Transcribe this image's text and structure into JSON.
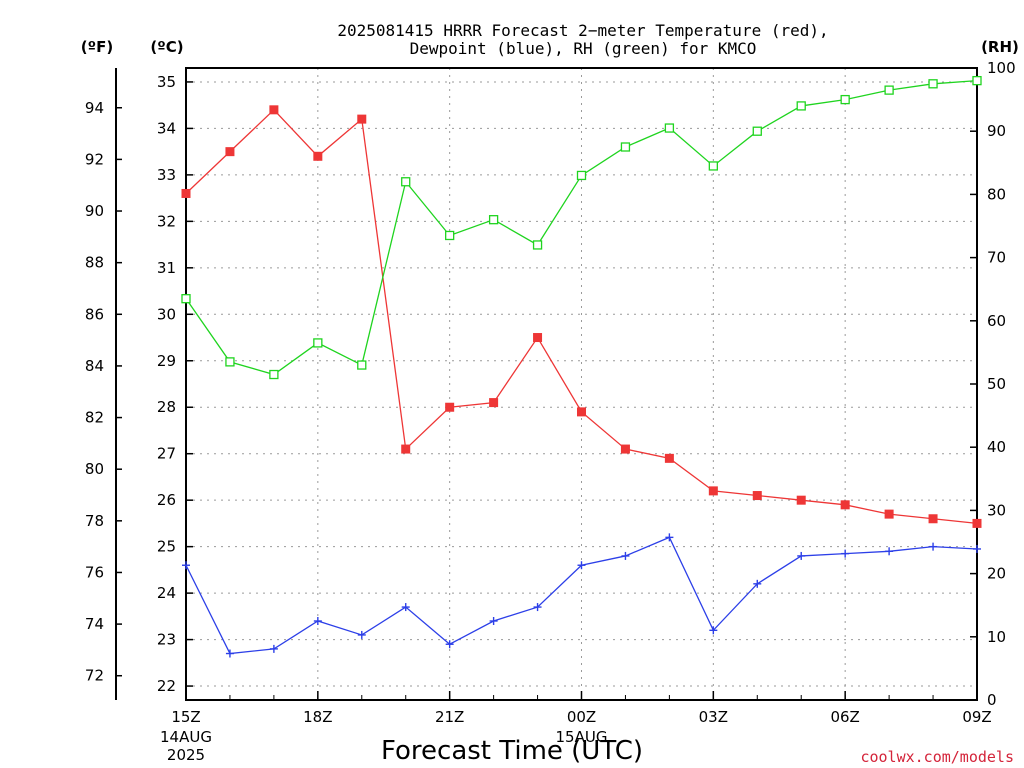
{
  "title": {
    "line1": "2025081415 HRRR Forecast 2−meter Temperature (red),",
    "line2": "Dewpoint (blue), RH (green) for KMCO"
  },
  "units": {
    "left_outer": "(ºF)",
    "left_inner": "(ºC)",
    "right": "(RH)"
  },
  "credit": "coolwx.com/models",
  "colors": {
    "temperature": "#ee3636",
    "dewpoint": "#2c3fe8",
    "rh": "#1fd41f",
    "grid": "#9a9a9a",
    "credit": "#d4243a"
  },
  "chart_data": {
    "type": "line",
    "xlabel": "Forecast Time (UTC)",
    "x": [
      "15Z",
      "16Z",
      "17Z",
      "18Z",
      "19Z",
      "20Z",
      "21Z",
      "22Z",
      "23Z",
      "00Z",
      "01Z",
      "02Z",
      "03Z",
      "04Z",
      "05Z",
      "06Z",
      "07Z",
      "08Z",
      "09Z"
    ],
    "x_ticks": [
      {
        "label": "15Z",
        "sub": [
          "14AUG",
          "2025"
        ]
      },
      {
        "label": "18Z",
        "sub": []
      },
      {
        "label": "21Z",
        "sub": []
      },
      {
        "label": "00Z",
        "sub": [
          "15AUG"
        ]
      },
      {
        "label": "03Z",
        "sub": []
      },
      {
        "label": "06Z",
        "sub": []
      },
      {
        "label": "09Z",
        "sub": []
      }
    ],
    "y_celsius": {
      "ticks": [
        "22",
        "23",
        "24",
        "25",
        "26",
        "27",
        "28",
        "29",
        "30",
        "31",
        "32",
        "33",
        "34",
        "35"
      ],
      "range": [
        21.7,
        35.3
      ]
    },
    "y_fahrenheit": {
      "ticks": [
        "72",
        "74",
        "76",
        "78",
        "80",
        "82",
        "84",
        "86",
        "88",
        "90",
        "92",
        "94"
      ]
    },
    "y_rh": {
      "ticks": [
        "0",
        "10",
        "20",
        "30",
        "40",
        "50",
        "60",
        "70",
        "80",
        "90",
        "100"
      ],
      "range": [
        0,
        100
      ]
    },
    "grid": true,
    "series": [
      {
        "name": "Temperature",
        "color_key": "temperature",
        "axis": "celsius",
        "marker": "filled-square",
        "values": [
          32.6,
          33.5,
          34.4,
          33.4,
          34.2,
          27.1,
          28.0,
          28.1,
          29.5,
          27.9,
          27.1,
          26.9,
          26.2,
          26.1,
          26.0,
          25.9,
          25.7,
          25.6,
          25.5
        ]
      },
      {
        "name": "Dewpoint",
        "color_key": "dewpoint",
        "axis": "celsius",
        "marker": "plus",
        "values": [
          24.6,
          22.7,
          22.8,
          23.4,
          23.1,
          23.7,
          22.9,
          23.4,
          23.7,
          24.6,
          24.8,
          25.2,
          23.2,
          24.2,
          24.8,
          24.85,
          24.9,
          25.0,
          24.95
        ]
      },
      {
        "name": "RH",
        "color_key": "rh",
        "axis": "rh",
        "marker": "open-square",
        "values": [
          63.5,
          53.5,
          51.5,
          56.5,
          53.0,
          82.0,
          73.5,
          76.0,
          72.0,
          83.0,
          87.5,
          90.5,
          84.5,
          90.0,
          94.0,
          95.0,
          96.5,
          97.5,
          98.0
        ]
      }
    ]
  }
}
